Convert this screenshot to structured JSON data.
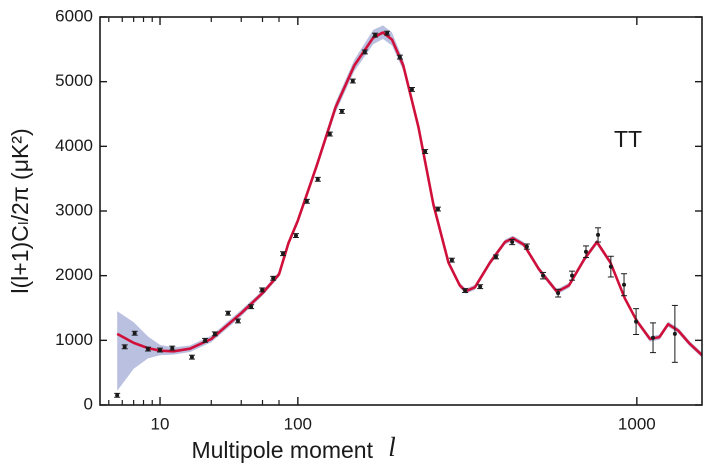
{
  "chart_data": {
    "type": "line",
    "xlabel": "Multipole moment",
    "xlabel_symbol": "l",
    "ylabel": "l(l+1)Cₗ/2π (μK²)",
    "annotation": "TT",
    "xscale": "log-linear",
    "xsplit": 50,
    "xlim": [
      4.44,
      1173
    ],
    "ylim": [
      0,
      6000
    ],
    "xticks": [
      10,
      100,
      1000
    ],
    "xminorticks": [
      5,
      6,
      7,
      8,
      9,
      20,
      30,
      40,
      50
    ],
    "yticks": [
      0,
      1000,
      2000,
      3000,
      4000,
      5000,
      6000
    ],
    "series": [
      {
        "type": "band",
        "color": "#b9c0e0",
        "x": [
          5.6,
          7,
          8.5,
          10,
          12,
          15,
          20,
          30,
          40,
          50,
          75,
          100,
          150,
          200,
          250,
          300,
          326,
          350,
          380,
          420,
          460,
          500,
          530,
          546,
          570,
          610,
          650,
          671,
          700,
          740,
          788,
          820,
          860,
          894,
          930,
          968,
          1000,
          1035,
          1060,
          1083,
          1110,
          1140,
          1175
        ],
        "lower": [
          220,
          560,
          720,
          770,
          780,
          820,
          970,
          1370,
          1690,
          1980,
          2460,
          2800,
          3640,
          4520,
          5160,
          5580,
          5660,
          5560,
          5170,
          4240,
          3050,
          2160,
          1810,
          1720,
          1780,
          2160,
          2480,
          2540,
          2440,
          2060,
          1710,
          1810,
          2210,
          2480,
          2160,
          1610,
          1260,
          980,
          1010,
          1210,
          1110,
          910,
          720
        ],
        "upper": [
          1450,
          1280,
          1060,
          930,
          890,
          920,
          1070,
          1470,
          1770,
          2060,
          2540,
          2900,
          3760,
          4680,
          5340,
          5800,
          5870,
          5760,
          5330,
          4360,
          3150,
          2240,
          1890,
          1800,
          1860,
          2240,
          2560,
          2620,
          2520,
          2140,
          1790,
          1890,
          2290,
          2560,
          2240,
          1690,
          1340,
          1060,
          1090,
          1290,
          1190,
          990,
          800
        ]
      },
      {
        "type": "line",
        "color": "#d0103a",
        "x": [
          5.6,
          7,
          8.5,
          10,
          12,
          15,
          20,
          30,
          40,
          50,
          75,
          100,
          150,
          200,
          250,
          300,
          326,
          350,
          380,
          420,
          460,
          500,
          530,
          546,
          570,
          610,
          650,
          671,
          700,
          740,
          788,
          820,
          860,
          894,
          930,
          968,
          1000,
          1035,
          1060,
          1083,
          1110,
          1140,
          1175
        ],
        "values": [
          1100,
          960,
          880,
          840,
          830,
          870,
          1020,
          1420,
          1730,
          2020,
          2500,
          2850,
          3700,
          4600,
          5250,
          5680,
          5760,
          5650,
          5250,
          4300,
          3100,
          2200,
          1850,
          1760,
          1820,
          2200,
          2520,
          2580,
          2480,
          2100,
          1750,
          1850,
          2250,
          2520,
          2200,
          1650,
          1300,
          1020,
          1050,
          1250,
          1150,
          950,
          760
        ]
      },
      {
        "type": "errorbar",
        "color": "#1a1a1a",
        "x": [
          5.6,
          6.2,
          7.1,
          8.5,
          10,
          11.8,
          15.4,
          18.4,
          21,
          25.1,
          28.7,
          34.3,
          39.8,
          46.2,
          60.6,
          95,
          124,
          153,
          185,
          217,
          246,
          278,
          305,
          337,
          371,
          403,
          438,
          472,
          509,
          544,
          584,
          626,
          669,
          708,
          751,
          791,
          828,
          865,
          897,
          931,
          966,
          998,
          1043,
          1101
        ],
        "values": [
          150,
          900,
          1110,
          865,
          850,
          880,
          740,
          1000,
          1100,
          1420,
          1300,
          1520,
          1780,
          1960,
          2340,
          2620,
          3150,
          3490,
          4190,
          4540,
          5010,
          5460,
          5720,
          5750,
          5380,
          4880,
          3920,
          3030,
          2240,
          1770,
          1830,
          2290,
          2520,
          2450,
          2000,
          1730,
          2000,
          2370,
          2630,
          2140,
          1860,
          1290,
          1040,
          1100
        ],
        "errors": [
          30,
          30,
          30,
          30,
          30,
          30,
          30,
          30,
          30,
          30,
          30,
          30,
          30,
          30,
          30,
          30,
          30,
          30,
          30,
          30,
          30,
          30,
          30,
          30,
          30,
          30,
          30,
          30,
          30,
          30,
          30,
          30,
          40,
          40,
          50,
          60,
          70,
          90,
          110,
          160,
          170,
          200,
          230,
          440
        ]
      }
    ]
  }
}
